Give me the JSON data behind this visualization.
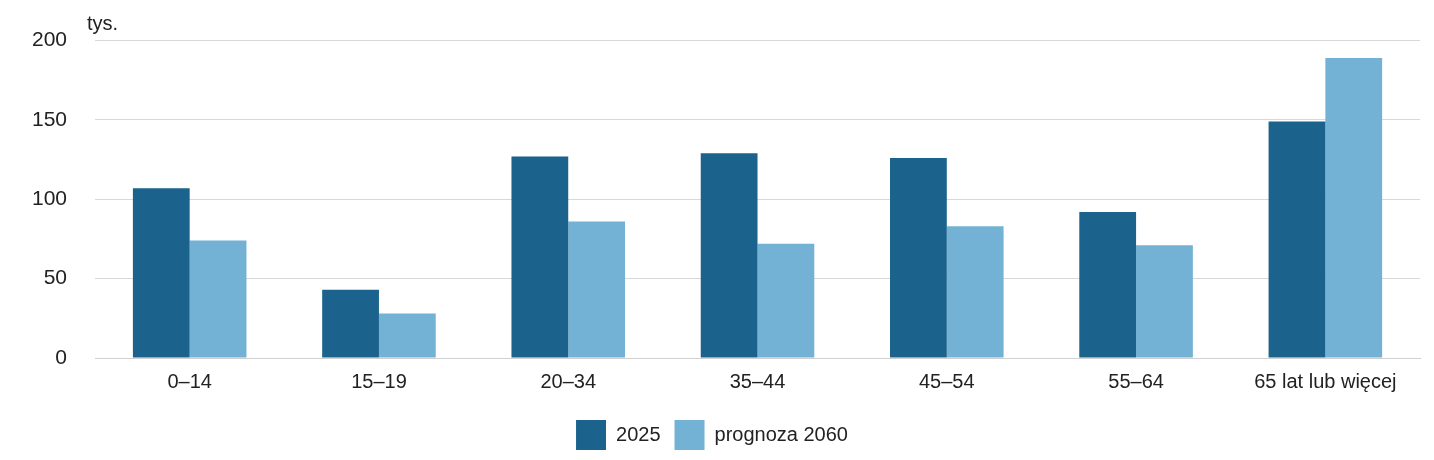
{
  "chart_data": {
    "type": "bar",
    "ylabel": "tys.",
    "categories": [
      "0–14",
      "15–19",
      "20–34",
      "35–44",
      "45–54",
      "55–64",
      "65 lat lub więcej"
    ],
    "series": [
      {
        "name": "2025",
        "color": "#1b638c",
        "values": [
          107,
          43,
          127,
          129,
          126,
          92,
          149
        ]
      },
      {
        "name": "prognoza 2060",
        "color": "#73b2d4",
        "values": [
          74,
          28,
          86,
          72,
          83,
          71,
          189
        ]
      }
    ],
    "ylim": [
      0,
      200
    ],
    "yticks": [
      0,
      50,
      100,
      150,
      200
    ],
    "grid": "y",
    "legend": "bottom"
  }
}
